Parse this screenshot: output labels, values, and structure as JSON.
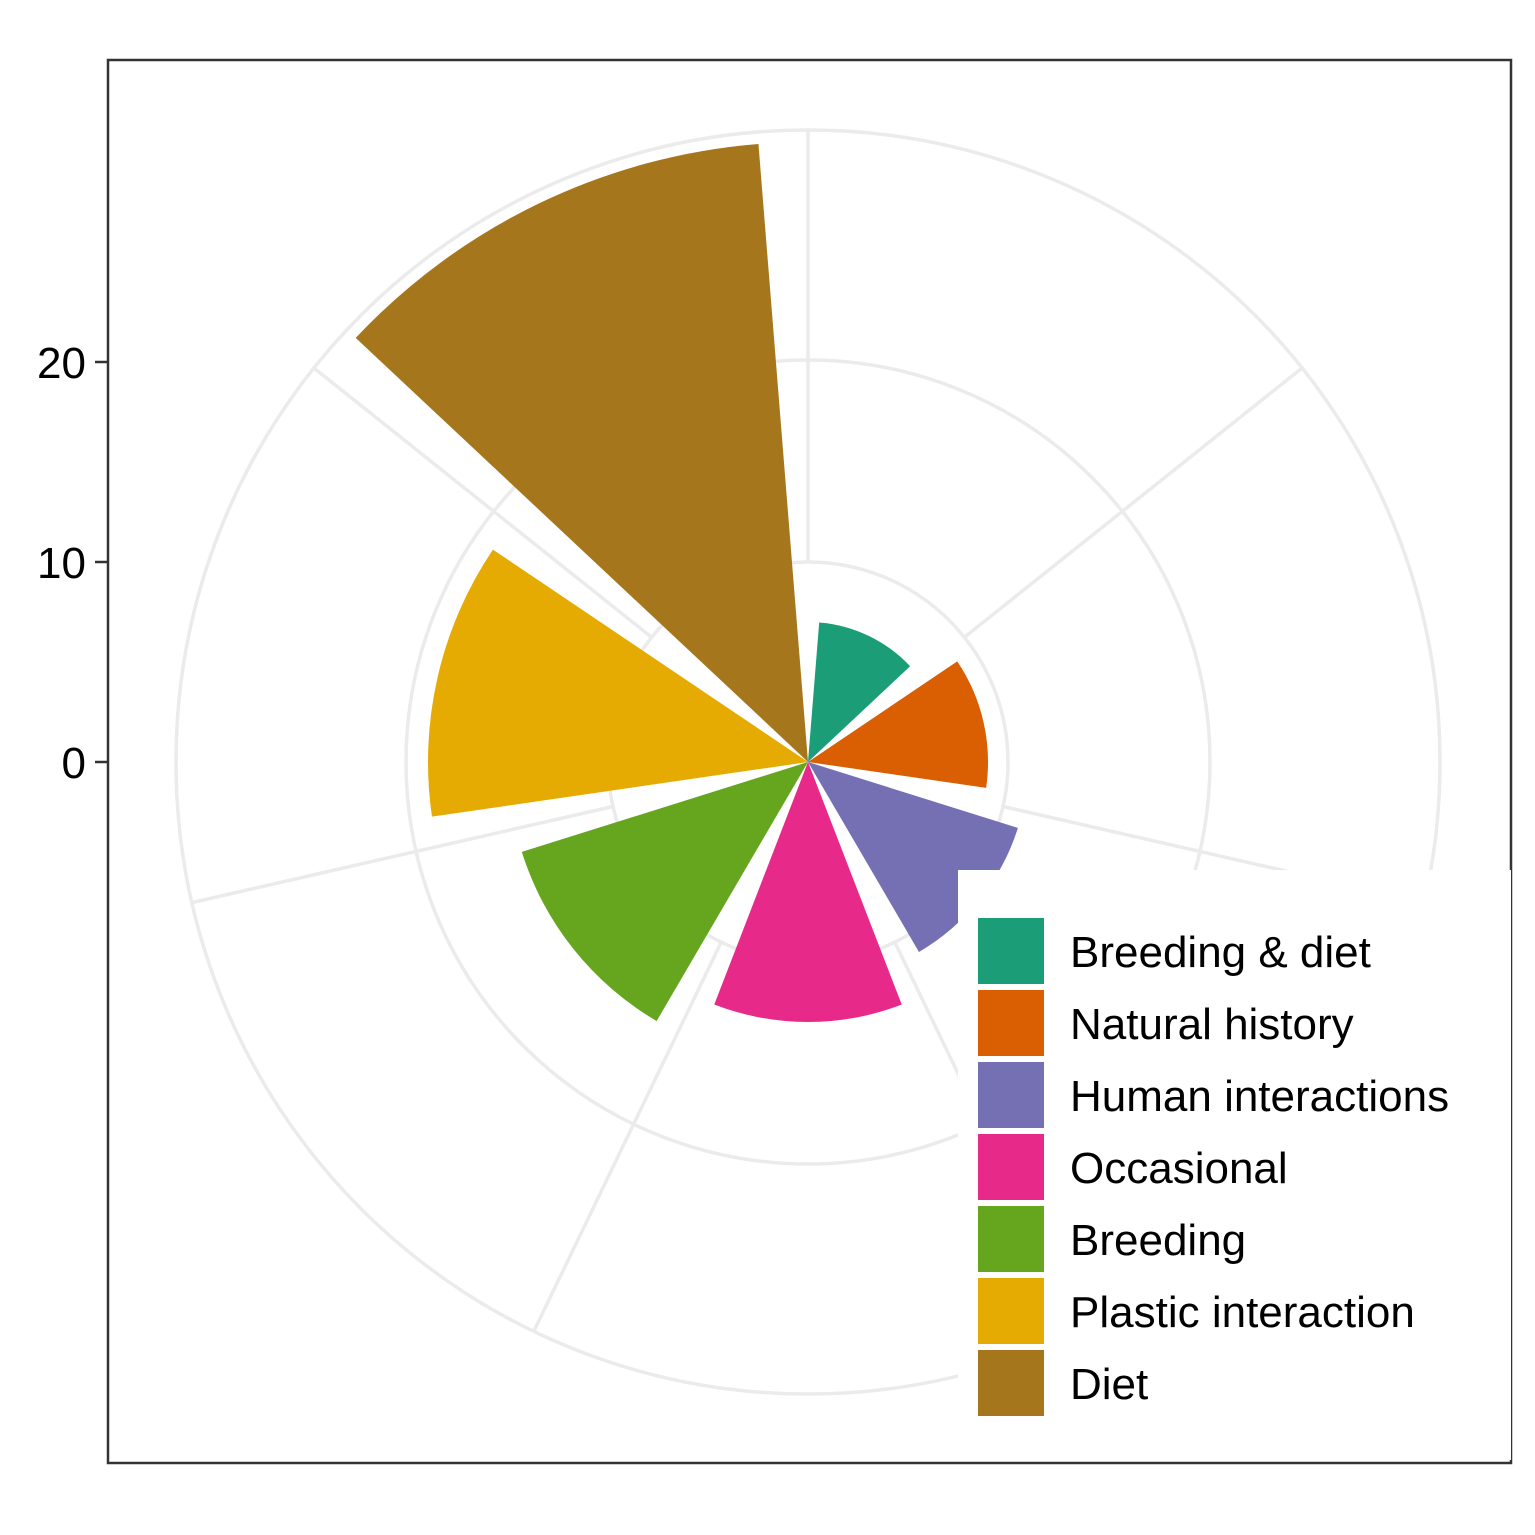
{
  "chart_data": {
    "type": "polar-bar",
    "title": "",
    "xlabel": "",
    "ylabel": "",
    "y_ticks": [
      0,
      10,
      20
    ],
    "y_tick_labels": [
      "0",
      "10",
      "20"
    ],
    "grid": true,
    "legend_position": "bottom-right",
    "categories": [
      "Breeding & diet",
      "Natural history",
      "Human interactions",
      "Occasional",
      "Breeding",
      "Plastic interaction",
      "Diet"
    ],
    "values": [
      4,
      6,
      8,
      10,
      12,
      16,
      28
    ],
    "colors": [
      "#1b9e77",
      "#d95f02",
      "#7570b3",
      "#e7298a",
      "#66a61e",
      "#e6ab02",
      "#a6761d"
    ]
  }
}
